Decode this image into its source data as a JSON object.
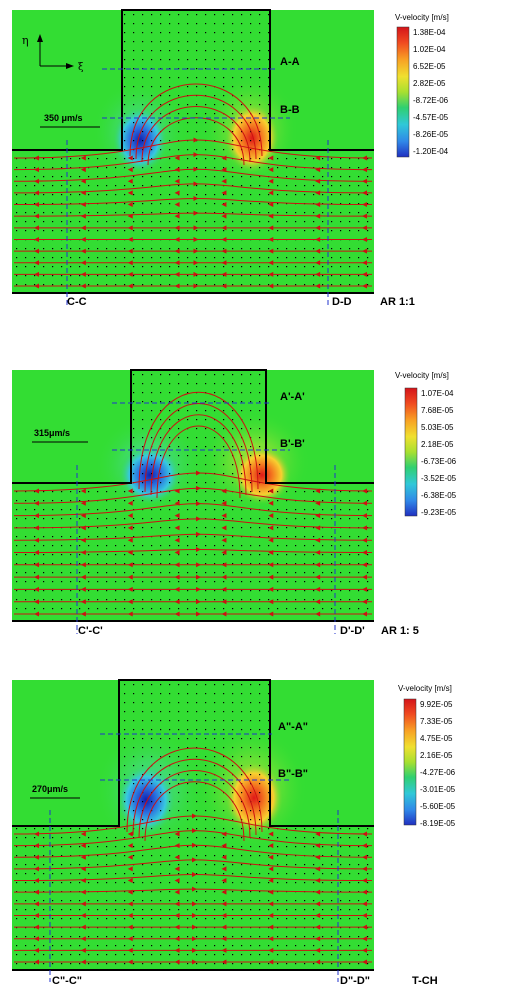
{
  "panels": [
    {
      "id": "ar11",
      "section_top": "A-A",
      "section_mid": "B-B",
      "section_left": "C-C",
      "section_right": "D-D",
      "aspect_label": "AR 1:1",
      "scale_label": "350 μm/s",
      "axis_eta": "η",
      "axis_xi": "ξ",
      "colorbar": {
        "title": "V-velocity [m/s]",
        "ticks": [
          "1.38E-04",
          "1.02E-04",
          "6.52E-05",
          "2.82E-05",
          "-8.72E-06",
          "-4.57E-05",
          "-8.26E-05",
          "-1.20E-04"
        ]
      }
    },
    {
      "id": "ar15",
      "section_top": "A'-A'",
      "section_mid": "B'-B'",
      "section_left": "C'-C'",
      "section_right": "D'-D'",
      "aspect_label": "AR 1: 5",
      "scale_label": "315μm/s",
      "colorbar": {
        "title": "V-velocity [m/s]",
        "ticks": [
          "1.07E-04",
          "7.68E-05",
          "5.03E-05",
          "2.18E-05",
          "-6.73E-06",
          "-3.52E-05",
          "-6.38E-05",
          "-9.23E-05"
        ]
      }
    },
    {
      "id": "tch",
      "section_top": "A\"-A\"",
      "section_mid": "B\"-B\"",
      "section_left": "C\"-C\"",
      "section_right": "D\"-D\"",
      "aspect_label": "T-CH",
      "scale_label": "270μm/s",
      "colorbar": {
        "title": "V-velocity [m/s]",
        "ticks": [
          "9.92E-05",
          "7.33E-05",
          "4.75E-05",
          "2.16E-05",
          "-4.27E-06",
          "-3.01E-05",
          "-5.60E-05",
          "-8.19E-05"
        ]
      }
    }
  ],
  "colors": {
    "background_field": "#33dd33",
    "streamline": "#cc1111",
    "section_line": "#2233cc",
    "wall": "#000000",
    "colorbar": [
      "#d4141a",
      "#f04a20",
      "#f8a024",
      "#f0e030",
      "#a8e030",
      "#30d070",
      "#30c8d8",
      "#3088e8",
      "#2030c0"
    ]
  }
}
